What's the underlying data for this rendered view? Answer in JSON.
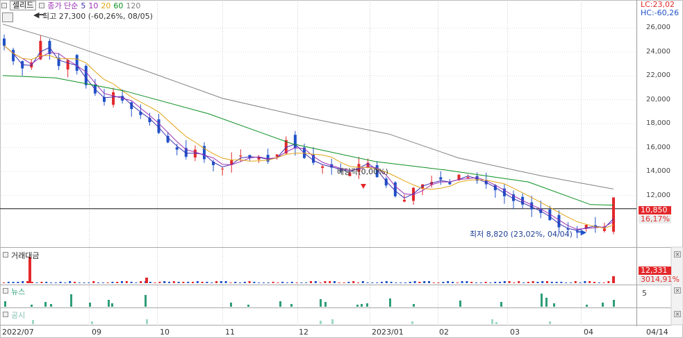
{
  "legend": {
    "name": "셀리드",
    "ma_label": "종가 단순",
    "ma": [
      {
        "period": "5",
        "color": "#3b2fb0"
      },
      {
        "period": "10",
        "color": "#9b2fb4"
      },
      {
        "period": "20",
        "color": "#e1a415"
      },
      {
        "period": "60",
        "color": "#0a8f1f"
      },
      {
        "period": "120",
        "color": "#808080"
      }
    ],
    "high_note": "최고 27,300 (-60,26%, 08/05)"
  },
  "corner": {
    "lc": "LC:23,02",
    "hc": "HC:-60,26"
  },
  "price_axis": [
    "26,000",
    "24,000",
    "22,000",
    "20,000",
    "18,000",
    "16,000",
    "14,000",
    "12,000"
  ],
  "current_price": "10,850",
  "current_change": "16,17%",
  "low_note": "최저 8,820 (23,02%, 04/04)",
  "dividend_note": "배당락(0,00%)",
  "volume_panel": {
    "title": "거래대금",
    "value": "12,331",
    "change": "3014,91%"
  },
  "news_panel": {
    "title": "뉴스",
    "axis": "5"
  },
  "disclosure_panel": {
    "title": "공시"
  },
  "x_axis": [
    "2022/07",
    "09",
    "10",
    "11",
    "12",
    "2023/01",
    "02",
    "03",
    "04",
    "04/14"
  ],
  "colors": {
    "up": "#e3282b",
    "down": "#1f51c8",
    "ma5": "#3b2fb0",
    "ma10": "#9b2fb4",
    "ma20": "#e1a415",
    "ma60": "#0a8f1f",
    "ma120": "#808080",
    "news": "#2e9d78",
    "disclosure": "#9fd8c4"
  },
  "chart_data": {
    "type": "candlestick",
    "x_range": [
      "2022-07",
      "2023-04-14"
    ],
    "ylim": [
      8000,
      27500
    ],
    "current_price": 10850,
    "high": {
      "value": 27300,
      "date": "08/05"
    },
    "low": {
      "value": 8820,
      "date": "04/04"
    },
    "close_series": [
      24500,
      23200,
      22600,
      23100,
      24900,
      23800,
      22800,
      23300,
      22400,
      21200,
      20500,
      19800,
      20600,
      19900,
      19200,
      18700,
      18100,
      17200,
      16400,
      15800,
      15200,
      15800,
      15000,
      14500,
      14200,
      14900,
      15300,
      15100,
      15200,
      14800,
      15400,
      16600,
      15900,
      15100,
      14700,
      14400,
      14300,
      14000,
      13900,
      14600,
      14700,
      13500,
      12800,
      11900,
      11600,
      12600,
      12900,
      13100,
      13300,
      12900,
      13700,
      13500,
      13200,
      12900,
      12400,
      11900,
      11500,
      11200,
      10800,
      10500,
      9900,
      9300,
      9100,
      9000,
      9500,
      9300,
      9200,
      10850
    ]
  }
}
